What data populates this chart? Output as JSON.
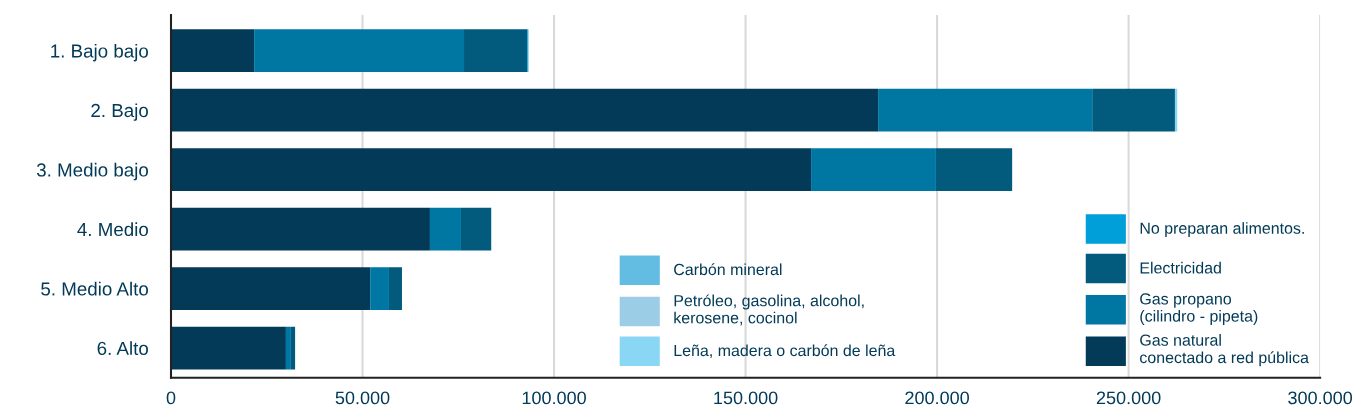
{
  "chart_data": {
    "type": "bar",
    "orientation": "horizontal",
    "stacked": true,
    "categories": [
      "1. Bajo bajo",
      "2. Bajo",
      "3. Medio bajo",
      "4. Medio",
      "5. Medio Alto",
      "6. Alto"
    ],
    "series": [
      {
        "name": "Gas natural\nconectado a red pública",
        "color": "#033a57",
        "values": [
          21700,
          184600,
          167100,
          67600,
          52000,
          30000
        ]
      },
      {
        "name": "Gas propano\n(cilindro - pipeta)",
        "color": "#0077a3",
        "values": [
          54800,
          55900,
          32600,
          8100,
          4900,
          1300
        ]
      },
      {
        "name": "Electricidad",
        "color": "#025a7c",
        "values": [
          16500,
          21600,
          19900,
          7900,
          3400,
          1100
        ]
      },
      {
        "name": "No preparan alimentos.",
        "color": "#009fd9",
        "values": [
          300,
          0,
          0,
          0,
          0,
          0
        ]
      },
      {
        "name": "Carbón mineral",
        "color": "#63bde2",
        "values": [
          0,
          0,
          0,
          0,
          0,
          0
        ]
      },
      {
        "name": "Petróleo, gasolina, alcohol,\nkerosene, cocinol",
        "color": "#9ccde6",
        "values": [
          0,
          0,
          0,
          0,
          0,
          0
        ]
      },
      {
        "name": "Leña, madera o carbón de leña",
        "color": "#8ad6f5",
        "values": [
          0,
          600,
          0,
          0,
          0,
          0
        ]
      }
    ],
    "xlim": [
      0,
      300000
    ],
    "xticks": [
      {
        "value": 0,
        "label": "0"
      },
      {
        "value": 50000,
        "label": "50.000"
      },
      {
        "value": 100000,
        "label": "100.000"
      },
      {
        "value": 150000,
        "label": "150.000"
      },
      {
        "value": 200000,
        "label": "200.000"
      },
      {
        "value": 250000,
        "label": "250.000"
      },
      {
        "value": 300000,
        "label": "300.000"
      }
    ],
    "grid": "x",
    "legend": "bottom right"
  }
}
